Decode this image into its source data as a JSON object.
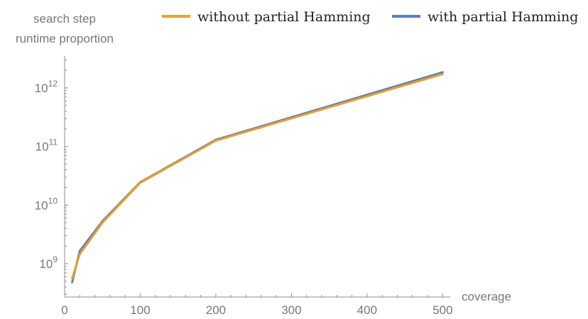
{
  "chart_data": {
    "type": "line",
    "title": "",
    "ylabel_lines": [
      "search step",
      "runtime proportion"
    ],
    "xlabel": "coverage",
    "xlim": [
      0,
      510
    ],
    "ylim": [
      270000000,
      3500000000000
    ],
    "y_scale": "log",
    "x_ticks": [
      0,
      100,
      200,
      300,
      400,
      500
    ],
    "x_tick_labels": [
      "0",
      "100",
      "200",
      "300",
      "400",
      "500"
    ],
    "y_ticks": [
      1000000000,
      10000000000,
      100000000000,
      1000000000000
    ],
    "y_tick_labels": [
      {
        "base": "10",
        "exp": "9"
      },
      {
        "base": "10",
        "exp": "10"
      },
      {
        "base": "10",
        "exp": "11"
      },
      {
        "base": "10",
        "exp": "12"
      }
    ],
    "grid": false,
    "legend_position": "top",
    "series": [
      {
        "name": "with partial Hamming",
        "color": "#5b7fc1",
        "x": [
          10,
          20,
          50,
          100,
          200,
          500
        ],
        "y": [
          480000000,
          1650000000,
          5300000000,
          24500000000,
          130000000000,
          1850000000000
        ]
      },
      {
        "name": "without partial Hamming",
        "color": "#e6a12e",
        "x": [
          10,
          20,
          50,
          100,
          200,
          500
        ],
        "y": [
          560000000,
          1450000000,
          5000000000,
          24000000000,
          126000000000,
          1720000000000
        ]
      }
    ],
    "legend_order": [
      1,
      0
    ]
  }
}
